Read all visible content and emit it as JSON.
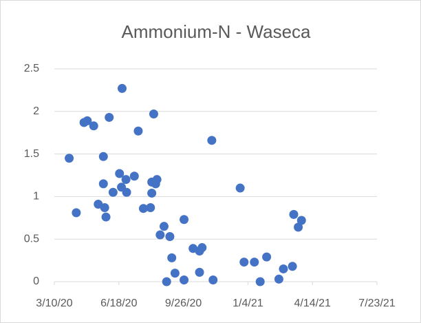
{
  "chart_data": {
    "type": "scatter",
    "title": "Ammonium-N - Waseca",
    "series": [
      {
        "color": "#4472c4",
        "x": [
          43923,
          43934,
          43946,
          43951,
          43961,
          43968,
          43976,
          43976,
          43978,
          43980,
          43985,
          43991,
          44001,
          44005,
          44004,
          44011,
          44012,
          44024,
          44030,
          44038,
          44049,
          44051,
          44051,
          44054,
          44057,
          44059,
          44064,
          44070,
          44079,
          44082,
          44074,
          44087,
          44101,
          44101,
          44115,
          44125,
          44125,
          44129,
          44144,
          44146,
          44188,
          44194,
          44210,
          44219,
          44229,
          44248,
          44255,
          44269,
          44271,
          44278,
          44283
        ],
        "values": [
          1.45,
          0.81,
          1.87,
          1.89,
          1.83,
          0.91,
          1.47,
          1.15,
          0.87,
          0.76,
          1.93,
          1.05,
          1.27,
          2.27,
          1.11,
          1.2,
          1.05,
          1.24,
          1.77,
          0.86,
          0.87,
          1.04,
          1.17,
          1.97,
          1.15,
          1.2,
          0.55,
          0.65,
          0.53,
          0.28,
          0,
          0.1,
          0.02,
          0.73,
          0.39,
          0.11,
          0.36,
          0.4,
          1.66,
          0.02,
          1.1,
          0.23,
          0.23,
          0,
          0.29,
          0.03,
          0.15,
          0.18,
          0.79,
          0.64,
          0.72
        ]
      }
    ],
    "xlim": [
      43900,
      44400
    ],
    "xticks": [
      {
        "value": 43900,
        "label": "3/10/20"
      },
      {
        "value": 44000,
        "label": "6/18/20"
      },
      {
        "value": 44100,
        "label": "9/26/20"
      },
      {
        "value": 44200,
        "label": "1/4/21"
      },
      {
        "value": 44300,
        "label": "4/14/21"
      },
      {
        "value": 44400,
        "label": "7/23/21"
      }
    ],
    "ylim": [
      0,
      2.5
    ],
    "yticks": [
      0,
      0.5,
      1,
      1.5,
      2,
      2.5
    ],
    "grid": true
  }
}
